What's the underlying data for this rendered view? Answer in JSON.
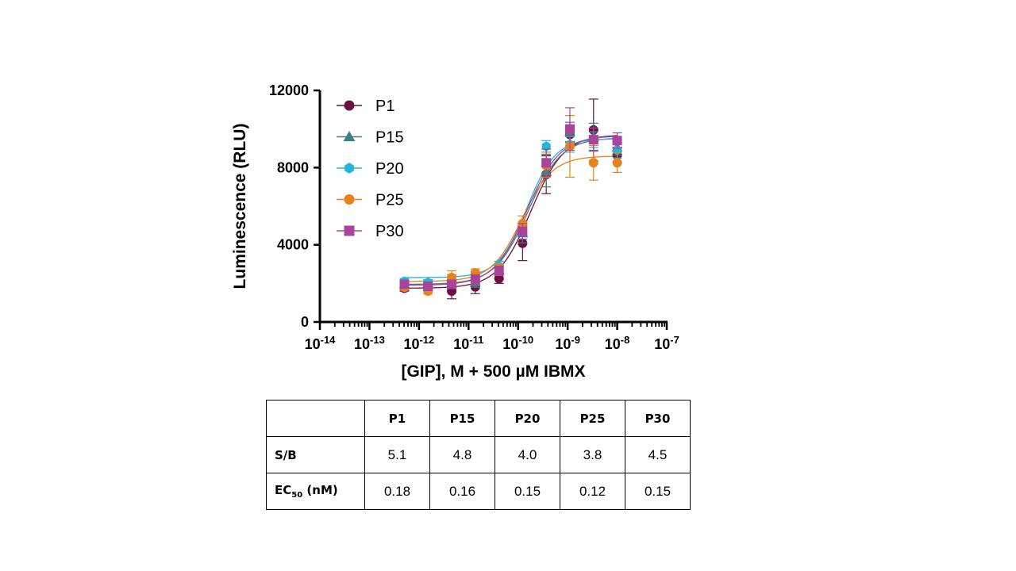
{
  "chart_data": {
    "type": "scatter",
    "xlabel": "[GIP], M + 500 µM IBMX",
    "ylabel": "Luminescence (RLU)",
    "xscale": "log",
    "xlim": [
      1e-14,
      1e-07
    ],
    "ylim": [
      0,
      12000
    ],
    "y_ticks": [
      0,
      4000,
      8000,
      12000
    ],
    "x_tick_labels": [
      {
        "base": "10",
        "exp": "-14"
      },
      {
        "base": "10",
        "exp": "-13"
      },
      {
        "base": "10",
        "exp": "-12"
      },
      {
        "base": "10",
        "exp": "-11"
      },
      {
        "base": "10",
        "exp": "-10"
      },
      {
        "base": "10",
        "exp": "-9"
      },
      {
        "base": "10",
        "exp": "-8"
      },
      {
        "base": "10",
        "exp": "-7"
      }
    ],
    "legend_position": "top-left",
    "x": [
      5.08e-13,
      1.52e-12,
      4.57e-12,
      1.37e-11,
      4.12e-11,
      1.23e-10,
      3.7e-10,
      1.11e-09,
      3.33e-09,
      1e-08
    ],
    "series": [
      {
        "name": "P1",
        "color": "#6b1040",
        "marker": "circle",
        "values": [
          1750,
          1800,
          1600,
          1820,
          2250,
          4080,
          7650,
          9720,
          9950,
          8650
        ],
        "errors": [
          150,
          150,
          400,
          350,
          250,
          900,
          1000,
          400,
          1600,
          400
        ],
        "fit": {
          "bottom": 1750,
          "top": 9700,
          "ec50": 1.8e-10,
          "hill": 1.3
        }
      },
      {
        "name": "P15",
        "color": "#3f7f80",
        "marker": "triangle",
        "values": [
          1950,
          2000,
          2000,
          2050,
          2700,
          4600,
          7800,
          9850,
          9600,
          9050
        ],
        "errors": [
          150,
          150,
          200,
          250,
          250,
          500,
          800,
          500,
          700,
          400
        ],
        "fit": {
          "bottom": 1950,
          "top": 9550,
          "ec50": 1.6e-10,
          "hill": 1.3
        }
      },
      {
        "name": "P20",
        "color": "#22b5d8",
        "marker": "hexagon",
        "values": [
          2100,
          2050,
          2300,
          2400,
          2900,
          4800,
          9100,
          9200,
          9450,
          8900
        ],
        "errors": [
          150,
          150,
          150,
          200,
          250,
          300,
          300,
          400,
          400,
          400
        ],
        "fit": {
          "bottom": 2300,
          "top": 9500,
          "ec50": 1.5e-10,
          "hill": 1.5
        }
      },
      {
        "name": "P25",
        "color": "#e8821c",
        "marker": "circle",
        "values": [
          1800,
          1600,
          2300,
          2550,
          2800,
          5100,
          8100,
          9100,
          8250,
          8250
        ],
        "errors": [
          150,
          150,
          350,
          200,
          200,
          400,
          600,
          1600,
          900,
          500
        ],
        "fit": {
          "bottom": 2100,
          "top": 8600,
          "ec50": 1.2e-10,
          "hill": 1.4
        }
      },
      {
        "name": "P30",
        "color": "#a8449c",
        "marker": "square",
        "values": [
          1950,
          1850,
          1950,
          2200,
          2650,
          4700,
          8250,
          10000,
          9450,
          9400
        ],
        "errors": [
          150,
          150,
          200,
          250,
          250,
          400,
          700,
          1100,
          600,
          400
        ],
        "fit": {
          "bottom": 1900,
          "top": 9650,
          "ec50": 1.5e-10,
          "hill": 1.3
        }
      }
    ]
  },
  "table": {
    "header": [
      "",
      "P1",
      "P15",
      "P20",
      "P25",
      "P30"
    ],
    "rows": [
      {
        "label": "S/B",
        "values": [
          "5.1",
          "4.8",
          "4.0",
          "3.8",
          "4.5"
        ]
      },
      {
        "label_main": "EC",
        "label_sub": "50",
        "label_rest": " (nM)",
        "values": [
          "0.18",
          "0.16",
          "0.15",
          "0.12",
          "0.15"
        ]
      }
    ]
  }
}
